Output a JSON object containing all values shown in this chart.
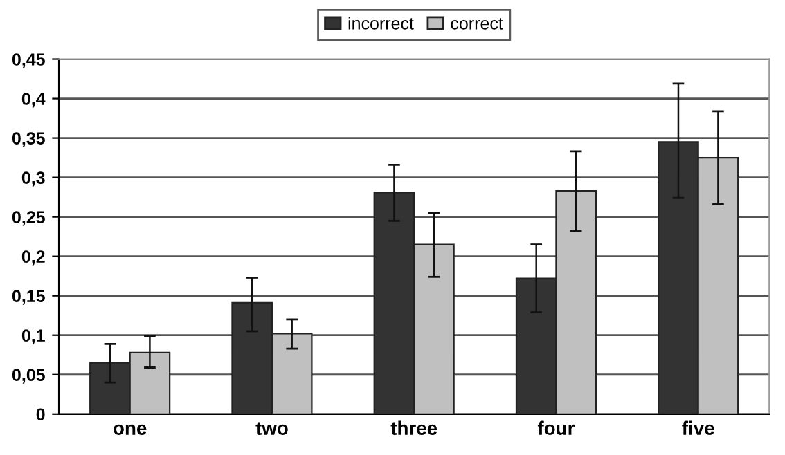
{
  "chart_data": {
    "type": "bar",
    "categories": [
      "one",
      "two",
      "three",
      "four",
      "five"
    ],
    "series": [
      {
        "name": "incorrect",
        "color": "#333333",
        "values": [
          0.065,
          0.141,
          0.281,
          0.172,
          0.345
        ],
        "errors": [
          [
            0.04,
            0.089
          ],
          [
            0.105,
            0.173
          ],
          [
            0.245,
            0.316
          ],
          [
            0.129,
            0.215
          ],
          [
            0.274,
            0.419
          ]
        ]
      },
      {
        "name": "correct",
        "color": "#c0c0c0",
        "values": [
          0.078,
          0.102,
          0.215,
          0.283,
          0.325
        ],
        "errors": [
          [
            0.059,
            0.099
          ],
          [
            0.083,
            0.12
          ],
          [
            0.174,
            0.255
          ],
          [
            0.232,
            0.333
          ],
          [
            0.266,
            0.384
          ]
        ]
      }
    ],
    "ylim": [
      0,
      0.45
    ],
    "yticks": [
      0,
      {
        "value": 0.05,
        "label": "0,05"
      },
      {
        "value": 0.1,
        "label": "0,1"
      },
      {
        "value": 0.15,
        "label": "0,15"
      },
      {
        "value": 0.2,
        "label": "0,2"
      },
      {
        "value": 0.25,
        "label": "0,25"
      },
      {
        "value": 0.3,
        "label": "0,3"
      },
      {
        "value": 0.35,
        "label": "0,35"
      },
      {
        "value": 0.4,
        "label": "0,4"
      },
      {
        "value": 0.45,
        "label": "0,45"
      }
    ],
    "grid": "y",
    "legend": "top"
  }
}
